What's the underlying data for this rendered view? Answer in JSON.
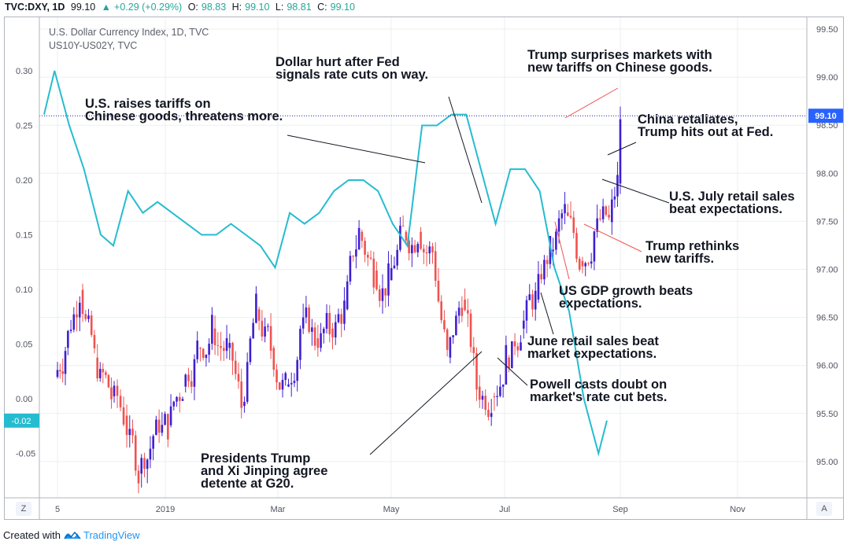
{
  "header": {
    "symbol": "TVC:DXY, 1D",
    "last": "99.10",
    "change": "+0.29 (+0.29%)",
    "o_label": "O:",
    "o_value": "98.83",
    "h_label": "H:",
    "h_value": "99.10",
    "l_label": "L:",
    "l_value": "98.81",
    "c_label": "C:",
    "c_value": "99.10"
  },
  "legend": {
    "main": "U.S. Dollar Currency Index, 1D, TVC",
    "overlay": "US10Y-US02Y, TVC"
  },
  "annotations": [
    {
      "id": "tariffs",
      "text": "U.S. raises tariffs on\nChinese goods, threatens more."
    },
    {
      "id": "fed",
      "text": "Dollar hurt after Fed\nsignals rate cuts on way."
    },
    {
      "id": "surprise",
      "text": "Trump surprises markets with\nnew tariffs on Chinese goods."
    },
    {
      "id": "china",
      "text": "China retaliates,\nTrump hits out at Fed."
    },
    {
      "id": "retail-july",
      "text": "U.S. July retail sales\nbeat expectations."
    },
    {
      "id": "rethinks",
      "text": "Trump rethinks\nnew tariffs."
    },
    {
      "id": "gdp",
      "text": "US GDP growth beats\nexpectations."
    },
    {
      "id": "retail-june",
      "text": "June retail sales beat\nmarket expectations."
    },
    {
      "id": "powell",
      "text": "Powell casts doubt on\nmarket's rate cut bets."
    },
    {
      "id": "g20",
      "text": "Presidents Trump\nand Xi Jinping agree\ndetente at G20."
    }
  ],
  "footer": {
    "created": "Created with",
    "brand": "TradingView"
  },
  "buttons": {
    "left": "Z",
    "right": "A"
  },
  "colors": {
    "up": "#3f1fd1",
    "down": "#ef5350",
    "spread": "#26bcd0",
    "price_tag": "#2962ff",
    "spread_tag": "#26bcd0"
  },
  "chart_data": {
    "type": "line",
    "x_ticks": [
      "5",
      "2019",
      "Mar",
      "May",
      "Jul",
      "Sep",
      "Nov"
    ],
    "right_axis": {
      "title": "",
      "ticks": [
        "99.50",
        "99.00",
        "98.50",
        "98.00",
        "97.50",
        "97.00",
        "96.50",
        "96.00",
        "95.50",
        "95.00"
      ],
      "ylim": [
        94.7,
        99.6
      ]
    },
    "left_axis": {
      "ticks": [
        "0.30",
        "0.25",
        "0.20",
        "0.15",
        "0.10",
        "0.05",
        "0.00",
        "-0.05"
      ],
      "ylim": [
        -0.06,
        0.31
      ]
    },
    "price_tag": "99.10",
    "spread_tag": "-0.02",
    "series": [
      {
        "name": "U.S. Dollar Currency Index",
        "kind": "candlestick",
        "x": [
          "2018-12-05",
          "2018-12-10",
          "2018-12-17",
          "2018-12-24",
          "2019-01-01",
          "2019-01-07",
          "2019-01-14",
          "2019-01-21",
          "2019-01-28",
          "2019-02-04",
          "2019-02-11",
          "2019-02-18",
          "2019-02-25",
          "2019-03-04",
          "2019-03-11",
          "2019-03-18",
          "2019-03-25",
          "2019-04-01",
          "2019-04-08",
          "2019-04-15",
          "2019-04-22",
          "2019-04-29",
          "2019-05-06",
          "2019-05-13",
          "2019-05-20",
          "2019-05-27",
          "2019-06-03",
          "2019-06-10",
          "2019-06-17",
          "2019-06-24",
          "2019-07-01",
          "2019-07-08",
          "2019-07-15",
          "2019-07-22",
          "2019-07-29",
          "2019-08-05",
          "2019-08-12",
          "2019-08-19",
          "2019-08-26",
          "2019-08-30"
        ],
        "values": [
          96.7,
          97.3,
          96.6,
          96.2,
          96.0,
          95.4,
          95.8,
          95.9,
          96.3,
          96.7,
          96.9,
          96.7,
          96.1,
          97.1,
          96.7,
          96.3,
          96.9,
          96.8,
          96.9,
          97.1,
          97.9,
          97.5,
          97.4,
          97.9,
          97.9,
          97.7,
          96.6,
          97.2,
          96.3,
          96.2,
          96.6,
          96.9,
          97.2,
          97.7,
          98.1,
          97.6,
          97.9,
          98.0,
          98.4,
          99.1
        ]
      },
      {
        "name": "US10Y-US02Y",
        "kind": "line",
        "x": [
          "2018-12-05",
          "2018-12-10",
          "2018-12-17",
          "2018-12-24",
          "2019-01-01",
          "2019-01-07",
          "2019-01-14",
          "2019-01-21",
          "2019-01-28",
          "2019-02-04",
          "2019-02-11",
          "2019-02-18",
          "2019-02-25",
          "2019-03-04",
          "2019-03-11",
          "2019-03-18",
          "2019-03-25",
          "2019-04-01",
          "2019-04-08",
          "2019-04-15",
          "2019-04-22",
          "2019-04-29",
          "2019-05-06",
          "2019-05-13",
          "2019-05-20",
          "2019-05-27",
          "2019-06-03",
          "2019-06-10",
          "2019-06-17",
          "2019-06-24",
          "2019-07-01",
          "2019-07-08",
          "2019-07-15",
          "2019-07-22",
          "2019-07-29",
          "2019-08-05",
          "2019-08-12",
          "2019-08-19",
          "2019-08-26",
          "2019-08-30"
        ],
        "values": [
          0.26,
          0.3,
          0.25,
          0.21,
          0.15,
          0.14,
          0.19,
          0.17,
          0.18,
          0.17,
          0.16,
          0.15,
          0.15,
          0.16,
          0.15,
          0.14,
          0.12,
          0.17,
          0.16,
          0.17,
          0.19,
          0.2,
          0.2,
          0.19,
          0.16,
          0.14,
          0.25,
          0.25,
          0.26,
          0.26,
          0.21,
          0.16,
          0.21,
          0.21,
          0.19,
          0.12,
          0.08,
          0.0,
          -0.05,
          -0.02
        ]
      }
    ]
  }
}
